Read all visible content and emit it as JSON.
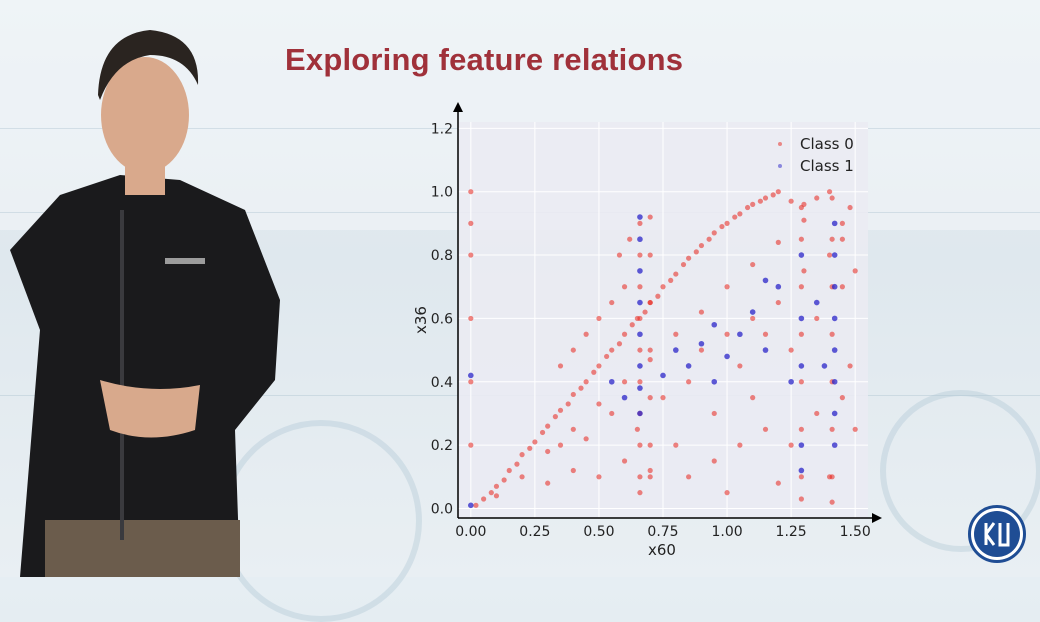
{
  "slide": {
    "title": "Exploring feature relations"
  },
  "presenter": {
    "description_icon": "person-presenting-icon"
  },
  "logo": {
    "icon": "hse-university-logo-icon",
    "color": "#1f4d94"
  },
  "colors": {
    "title": "#a0313a",
    "class0": "#e8231a",
    "class1": "#2a24c8",
    "plot_background": "#eaeaf2"
  },
  "chart_data": {
    "type": "scatter",
    "xlabel": "x60",
    "ylabel": "x36",
    "xlim": [
      -0.05,
      1.55
    ],
    "ylim": [
      -0.03,
      1.22
    ],
    "x_ticks": [
      "0.00",
      "0.25",
      "0.50",
      "0.75",
      "1.00",
      "1.25",
      "1.50"
    ],
    "x_tick_values": [
      0,
      0.25,
      0.5,
      0.75,
      1.0,
      1.25,
      1.5
    ],
    "y_ticks": [
      "0.0",
      "0.2",
      "0.4",
      "0.6",
      "0.8",
      "1.0",
      "1.2"
    ],
    "y_tick_values": [
      0,
      0.2,
      0.4,
      0.6,
      0.8,
      1.0,
      1.2
    ],
    "grid": true,
    "legend_position": "top-right",
    "series": [
      {
        "name": "Class 0",
        "color": "#e8231a",
        "points": [
          [
            0.02,
            0.01
          ],
          [
            0.05,
            0.03
          ],
          [
            0.08,
            0.05
          ],
          [
            0.1,
            0.07
          ],
          [
            0.13,
            0.09
          ],
          [
            0.15,
            0.12
          ],
          [
            0.18,
            0.14
          ],
          [
            0.2,
            0.17
          ],
          [
            0.23,
            0.19
          ],
          [
            0.25,
            0.21
          ],
          [
            0.28,
            0.24
          ],
          [
            0.3,
            0.26
          ],
          [
            0.33,
            0.29
          ],
          [
            0.35,
            0.31
          ],
          [
            0.38,
            0.33
          ],
          [
            0.4,
            0.36
          ],
          [
            0.43,
            0.38
          ],
          [
            0.45,
            0.4
          ],
          [
            0.48,
            0.43
          ],
          [
            0.5,
            0.45
          ],
          [
            0.53,
            0.48
          ],
          [
            0.55,
            0.5
          ],
          [
            0.58,
            0.52
          ],
          [
            0.6,
            0.55
          ],
          [
            0.63,
            0.58
          ],
          [
            0.65,
            0.6
          ],
          [
            0.68,
            0.62
          ],
          [
            0.7,
            0.65
          ],
          [
            0.73,
            0.67
          ],
          [
            0.75,
            0.7
          ],
          [
            0.78,
            0.72
          ],
          [
            0.8,
            0.74
          ],
          [
            0.83,
            0.77
          ],
          [
            0.85,
            0.79
          ],
          [
            0.88,
            0.81
          ],
          [
            0.9,
            0.83
          ],
          [
            0.93,
            0.85
          ],
          [
            0.95,
            0.87
          ],
          [
            0.98,
            0.89
          ],
          [
            1.0,
            0.9
          ],
          [
            1.03,
            0.92
          ],
          [
            1.05,
            0.93
          ],
          [
            1.08,
            0.95
          ],
          [
            1.1,
            0.96
          ],
          [
            1.13,
            0.97
          ],
          [
            1.15,
            0.98
          ],
          [
            1.18,
            0.99
          ],
          [
            1.2,
            1.0
          ],
          [
            1.25,
            0.97
          ],
          [
            1.3,
            0.96
          ],
          [
            1.35,
            0.98
          ],
          [
            1.4,
            1.0
          ],
          [
            0.1,
            0.04
          ],
          [
            0.2,
            0.1
          ],
          [
            0.3,
            0.18
          ],
          [
            0.4,
            0.25
          ],
          [
            0.5,
            0.33
          ],
          [
            0.6,
            0.4
          ],
          [
            0.7,
            0.47
          ],
          [
            0.8,
            0.55
          ],
          [
            0.9,
            0.62
          ],
          [
            1.0,
            0.7
          ],
          [
            1.1,
            0.77
          ],
          [
            1.2,
            0.84
          ],
          [
            1.3,
            0.91
          ],
          [
            0.35,
            0.2
          ],
          [
            0.45,
            0.22
          ],
          [
            0.55,
            0.3
          ],
          [
            0.65,
            0.25
          ],
          [
            0.75,
            0.35
          ],
          [
            0.85,
            0.4
          ],
          [
            0.95,
            0.3
          ],
          [
            1.05,
            0.45
          ],
          [
            1.15,
            0.55
          ],
          [
            1.25,
            0.5
          ],
          [
            1.35,
            0.6
          ],
          [
            1.45,
            0.7
          ],
          [
            0.85,
            0.1
          ],
          [
            0.95,
            0.15
          ],
          [
            1.05,
            0.2
          ],
          [
            1.15,
            0.25
          ],
          [
            1.25,
            0.2
          ],
          [
            1.35,
            0.3
          ],
          [
            1.45,
            0.35
          ],
          [
            1.0,
            0.05
          ],
          [
            1.2,
            0.08
          ],
          [
            1.4,
            0.1
          ],
          [
            0.7,
            0.12
          ],
          [
            0.8,
            0.2
          ],
          [
            0.9,
            0.5
          ],
          [
            1.0,
            0.55
          ],
          [
            1.1,
            0.6
          ],
          [
            1.2,
            0.65
          ],
          [
            1.3,
            0.75
          ],
          [
            1.4,
            0.8
          ],
          [
            1.45,
            0.85
          ],
          [
            1.1,
            0.35
          ],
          [
            0.6,
            0.15
          ],
          [
            0.5,
            0.1
          ],
          [
            0.4,
            0.12
          ],
          [
            0.3,
            0.08
          ],
          [
            0.66,
            0.9
          ],
          [
            0.66,
            0.8
          ],
          [
            0.66,
            0.7
          ],
          [
            0.66,
            0.6
          ],
          [
            0.66,
            0.5
          ],
          [
            0.66,
            0.4
          ],
          [
            0.66,
            0.3
          ],
          [
            0.66,
            0.2
          ],
          [
            0.66,
            0.1
          ],
          [
            0.66,
            0.05
          ],
          [
            0.7,
            0.92
          ],
          [
            0.7,
            0.8
          ],
          [
            0.7,
            0.65
          ],
          [
            0.7,
            0.5
          ],
          [
            0.7,
            0.35
          ],
          [
            0.7,
            0.2
          ],
          [
            0.7,
            0.1
          ],
          [
            0.58,
            0.8
          ],
          [
            0.6,
            0.7
          ],
          [
            0.62,
            0.85
          ],
          [
            0.55,
            0.65
          ],
          [
            0.5,
            0.6
          ],
          [
            0.45,
            0.55
          ],
          [
            0.4,
            0.5
          ],
          [
            0.35,
            0.45
          ],
          [
            1.29,
            0.95
          ],
          [
            1.29,
            0.85
          ],
          [
            1.29,
            0.7
          ],
          [
            1.29,
            0.55
          ],
          [
            1.29,
            0.4
          ],
          [
            1.29,
            0.25
          ],
          [
            1.29,
            0.1
          ],
          [
            1.29,
            0.03
          ],
          [
            1.41,
            0.98
          ],
          [
            1.41,
            0.85
          ],
          [
            1.41,
            0.7
          ],
          [
            1.41,
            0.55
          ],
          [
            1.41,
            0.4
          ],
          [
            1.41,
            0.25
          ],
          [
            1.41,
            0.1
          ],
          [
            1.41,
            0.02
          ],
          [
            0.0,
            0.9
          ],
          [
            0.0,
            0.8
          ],
          [
            0.0,
            0.6
          ],
          [
            0.0,
            0.4
          ],
          [
            0.0,
            0.2
          ],
          [
            0.0,
            1.0
          ],
          [
            1.45,
            0.9
          ],
          [
            1.48,
            0.95
          ],
          [
            1.5,
            0.75
          ],
          [
            1.48,
            0.45
          ],
          [
            1.5,
            0.25
          ]
        ]
      },
      {
        "name": "Class 1",
        "color": "#2a24c8",
        "points": [
          [
            0.66,
            0.92
          ],
          [
            0.66,
            0.85
          ],
          [
            0.66,
            0.75
          ],
          [
            0.66,
            0.65
          ],
          [
            0.66,
            0.55
          ],
          [
            0.66,
            0.45
          ],
          [
            0.66,
            0.38
          ],
          [
            0.66,
            0.3
          ],
          [
            1.42,
            0.9
          ],
          [
            1.42,
            0.8
          ],
          [
            1.42,
            0.7
          ],
          [
            1.42,
            0.6
          ],
          [
            1.42,
            0.5
          ],
          [
            1.42,
            0.4
          ],
          [
            1.42,
            0.3
          ],
          [
            1.42,
            0.2
          ],
          [
            1.29,
            0.8
          ],
          [
            1.29,
            0.6
          ],
          [
            1.29,
            0.45
          ],
          [
            1.29,
            0.2
          ],
          [
            1.29,
            0.12
          ],
          [
            0.0,
            0.42
          ],
          [
            0.0,
            0.01
          ],
          [
            0.85,
            0.45
          ],
          [
            0.9,
            0.52
          ],
          [
            0.95,
            0.58
          ],
          [
            1.0,
            0.48
          ],
          [
            1.05,
            0.55
          ],
          [
            1.1,
            0.62
          ],
          [
            1.15,
            0.5
          ],
          [
            1.2,
            0.7
          ],
          [
            0.8,
            0.5
          ],
          [
            0.75,
            0.42
          ],
          [
            1.25,
            0.4
          ],
          [
            1.35,
            0.65
          ],
          [
            1.38,
            0.45
          ],
          [
            1.15,
            0.72
          ],
          [
            0.95,
            0.4
          ],
          [
            0.6,
            0.35
          ],
          [
            0.55,
            0.4
          ]
        ]
      }
    ]
  }
}
